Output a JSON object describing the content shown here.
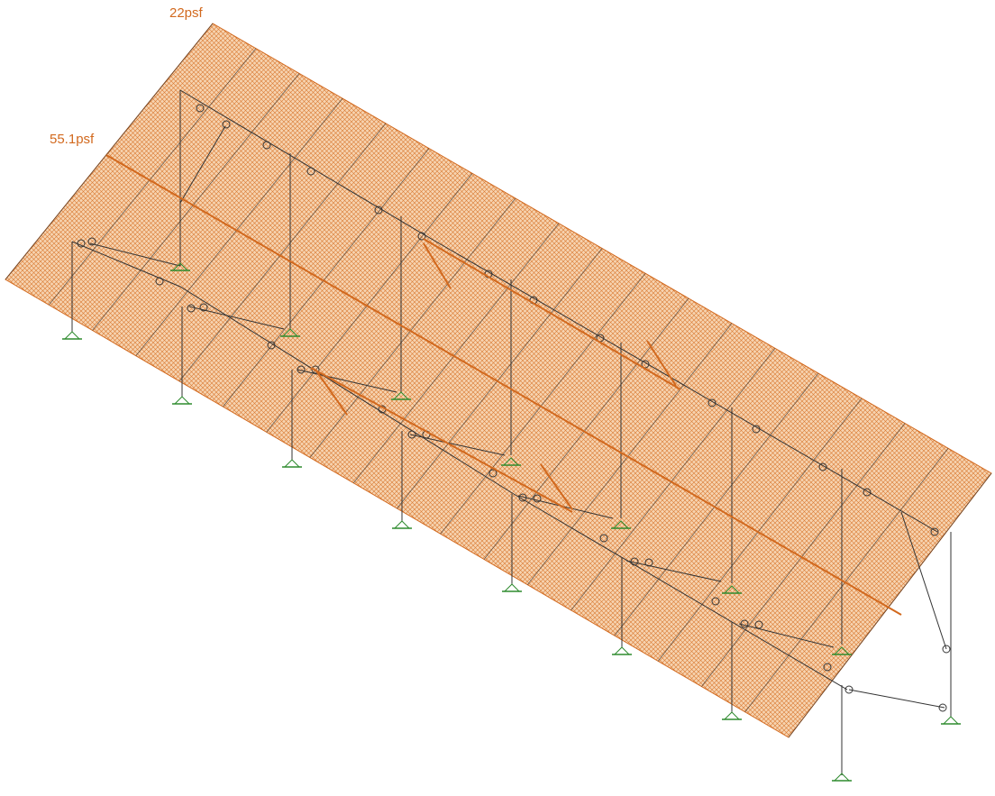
{
  "loads": {
    "upper_label": "22psf",
    "lower_label": "55.1psf"
  },
  "colors": {
    "load": "#d2691e",
    "load_fill": "#f3c8a0",
    "structure": "#333333",
    "support": "#2e8b2e"
  }
}
